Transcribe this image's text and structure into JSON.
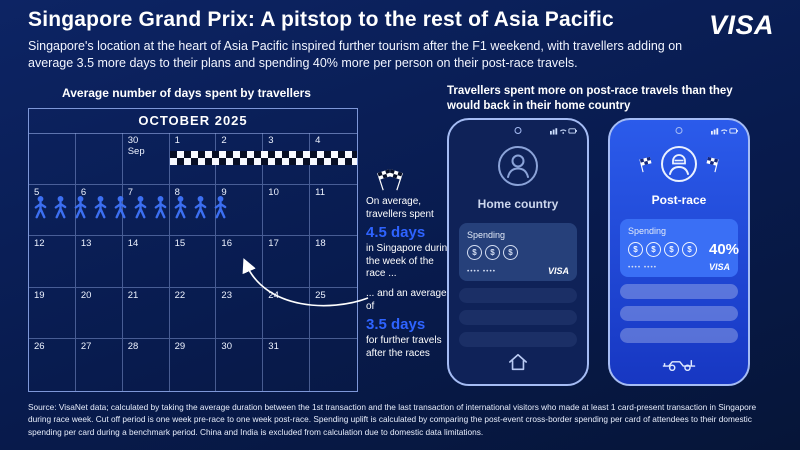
{
  "colors": {
    "background": "#081b4e",
    "accent_blue": "#2e63ff",
    "visa_brand_blue": "#1434cb",
    "phone_post_blue": "#2b5beb",
    "checker_dark": "#080f26",
    "white": "#ffffff"
  },
  "icons": {
    "coin": "$"
  },
  "header": {
    "title": "Singapore Grand Prix: A pitstop to the rest of Asia Pacific",
    "brand": "VISA",
    "subtitle": "Singapore's location at the heart of Asia Pacific inspired further tourism after the F1 weekend, with travellers adding on average 3.5 more days to their plans and spending 40% more per person on their post-race travels."
  },
  "left": {
    "heading": "Average number of days spent by travellers",
    "calendar": {
      "title": "OCTOBER 2025",
      "rows": [
        [
          "",
          "",
          "30\nSep",
          "1",
          "2",
          "3",
          "4"
        ],
        [
          "5",
          "6",
          "7",
          "8",
          "9",
          "10",
          "11"
        ],
        [
          "12",
          "13",
          "14",
          "15",
          "16",
          "17",
          "18"
        ],
        [
          "19",
          "20",
          "21",
          "22",
          "23",
          "24",
          "25"
        ],
        [
          "26",
          "27",
          "28",
          "29",
          "30",
          "31",
          ""
        ]
      ]
    },
    "annotation_race": {
      "line1": "On average, travellers spent",
      "value": "4.5 days",
      "line2": "in Singapore during the week of the race ..."
    },
    "annotation_post": {
      "line1": "... and an average of",
      "value": "3.5 days",
      "line2": "for further travels after the races"
    }
  },
  "right": {
    "heading": "Travellers spent more on post-race travels than they would back in their home country",
    "phone_home": {
      "label": "Home country",
      "card": {
        "title": "Spending",
        "masked": "•••• ••••",
        "brand": "VISA"
      }
    },
    "phone_post": {
      "label": "Post-race",
      "card": {
        "title": "Spending",
        "uplift": "40%",
        "masked": "•••• ••••",
        "brand": "VISA"
      }
    }
  },
  "footer": {
    "source": "Source: VisaNet data; calculated by taking the average duration between the 1st transaction and the last transaction of international visitors who made at least 1 card-present transaction in Singapore during race week. Cut off period is one week pre-race to one week post-race. Spending uplift is calculated by comparing the post-event cross-border spending per card of attendees to their domestic spending per card during a benchmark period. China and India is excluded from calculation due to domestic data limitations."
  }
}
